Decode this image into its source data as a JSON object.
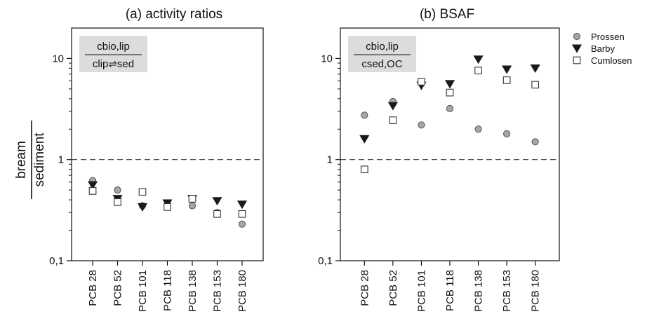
{
  "ylabel": {
    "numerator": "bream",
    "denominator": "sediment"
  },
  "legend": [
    {
      "name": "Prossen",
      "marker": "circle",
      "fill": "#a6a6a6",
      "stroke": "#555555"
    },
    {
      "name": "Barby",
      "marker": "triangle-down",
      "fill": "#1a1a1a",
      "stroke": "#1a1a1a"
    },
    {
      "name": "Cumlosen",
      "marker": "square",
      "fill": "#ffffff",
      "stroke": "#333333"
    }
  ],
  "chart_data": [
    {
      "type": "scatter",
      "title": "(a) activity ratios",
      "formula": {
        "numerator": "cbio,lip",
        "denominator": "clip⇌sed"
      },
      "categories": [
        "PCB 28",
        "PCB 52",
        "PCB 101",
        "PCB 118",
        "PCB 138",
        "PCB 153",
        "PCB 180"
      ],
      "yscale": "log",
      "ylim": [
        0.1,
        20
      ],
      "yticks": [
        {
          "value": 0.1,
          "label": "0,1"
        },
        {
          "value": 1,
          "label": "1"
        },
        {
          "value": 10,
          "label": "10"
        }
      ],
      "reference_line": 1,
      "series": [
        {
          "name": "Prossen",
          "values": [
            0.62,
            0.5,
            0.35,
            0.34,
            0.35,
            0.3,
            0.23
          ]
        },
        {
          "name": "Barby",
          "values": [
            0.56,
            0.41,
            0.34,
            0.37,
            0.41,
            0.39,
            0.36
          ]
        },
        {
          "name": "Cumlosen",
          "values": [
            0.49,
            0.38,
            0.48,
            0.34,
            0.41,
            0.29,
            0.29
          ]
        }
      ]
    },
    {
      "type": "scatter",
      "title": "(b) BSAF",
      "formula": {
        "numerator": "cbio,lip",
        "denominator": "csed,OC"
      },
      "categories": [
        "PCB 28",
        "PCB 52",
        "PCB 101",
        "PCB 118",
        "PCB 138",
        "PCB 153",
        "PCB 180"
      ],
      "yscale": "log",
      "ylim": [
        0.1,
        20
      ],
      "yticks": [
        {
          "value": 0.1,
          "label": "0,1"
        },
        {
          "value": 1,
          "label": "1"
        },
        {
          "value": 10,
          "label": "10"
        }
      ],
      "reference_line": 1,
      "series": [
        {
          "name": "Prossen",
          "values": [
            2.75,
            3.75,
            2.2,
            3.2,
            2.0,
            1.8,
            1.5
          ]
        },
        {
          "name": "Barby",
          "values": [
            1.6,
            3.4,
            5.4,
            5.6,
            9.8,
            7.8,
            8.0
          ]
        },
        {
          "name": "Cumlosen",
          "values": [
            0.8,
            2.45,
            5.9,
            4.6,
            7.6,
            6.1,
            5.5
          ]
        }
      ]
    }
  ]
}
